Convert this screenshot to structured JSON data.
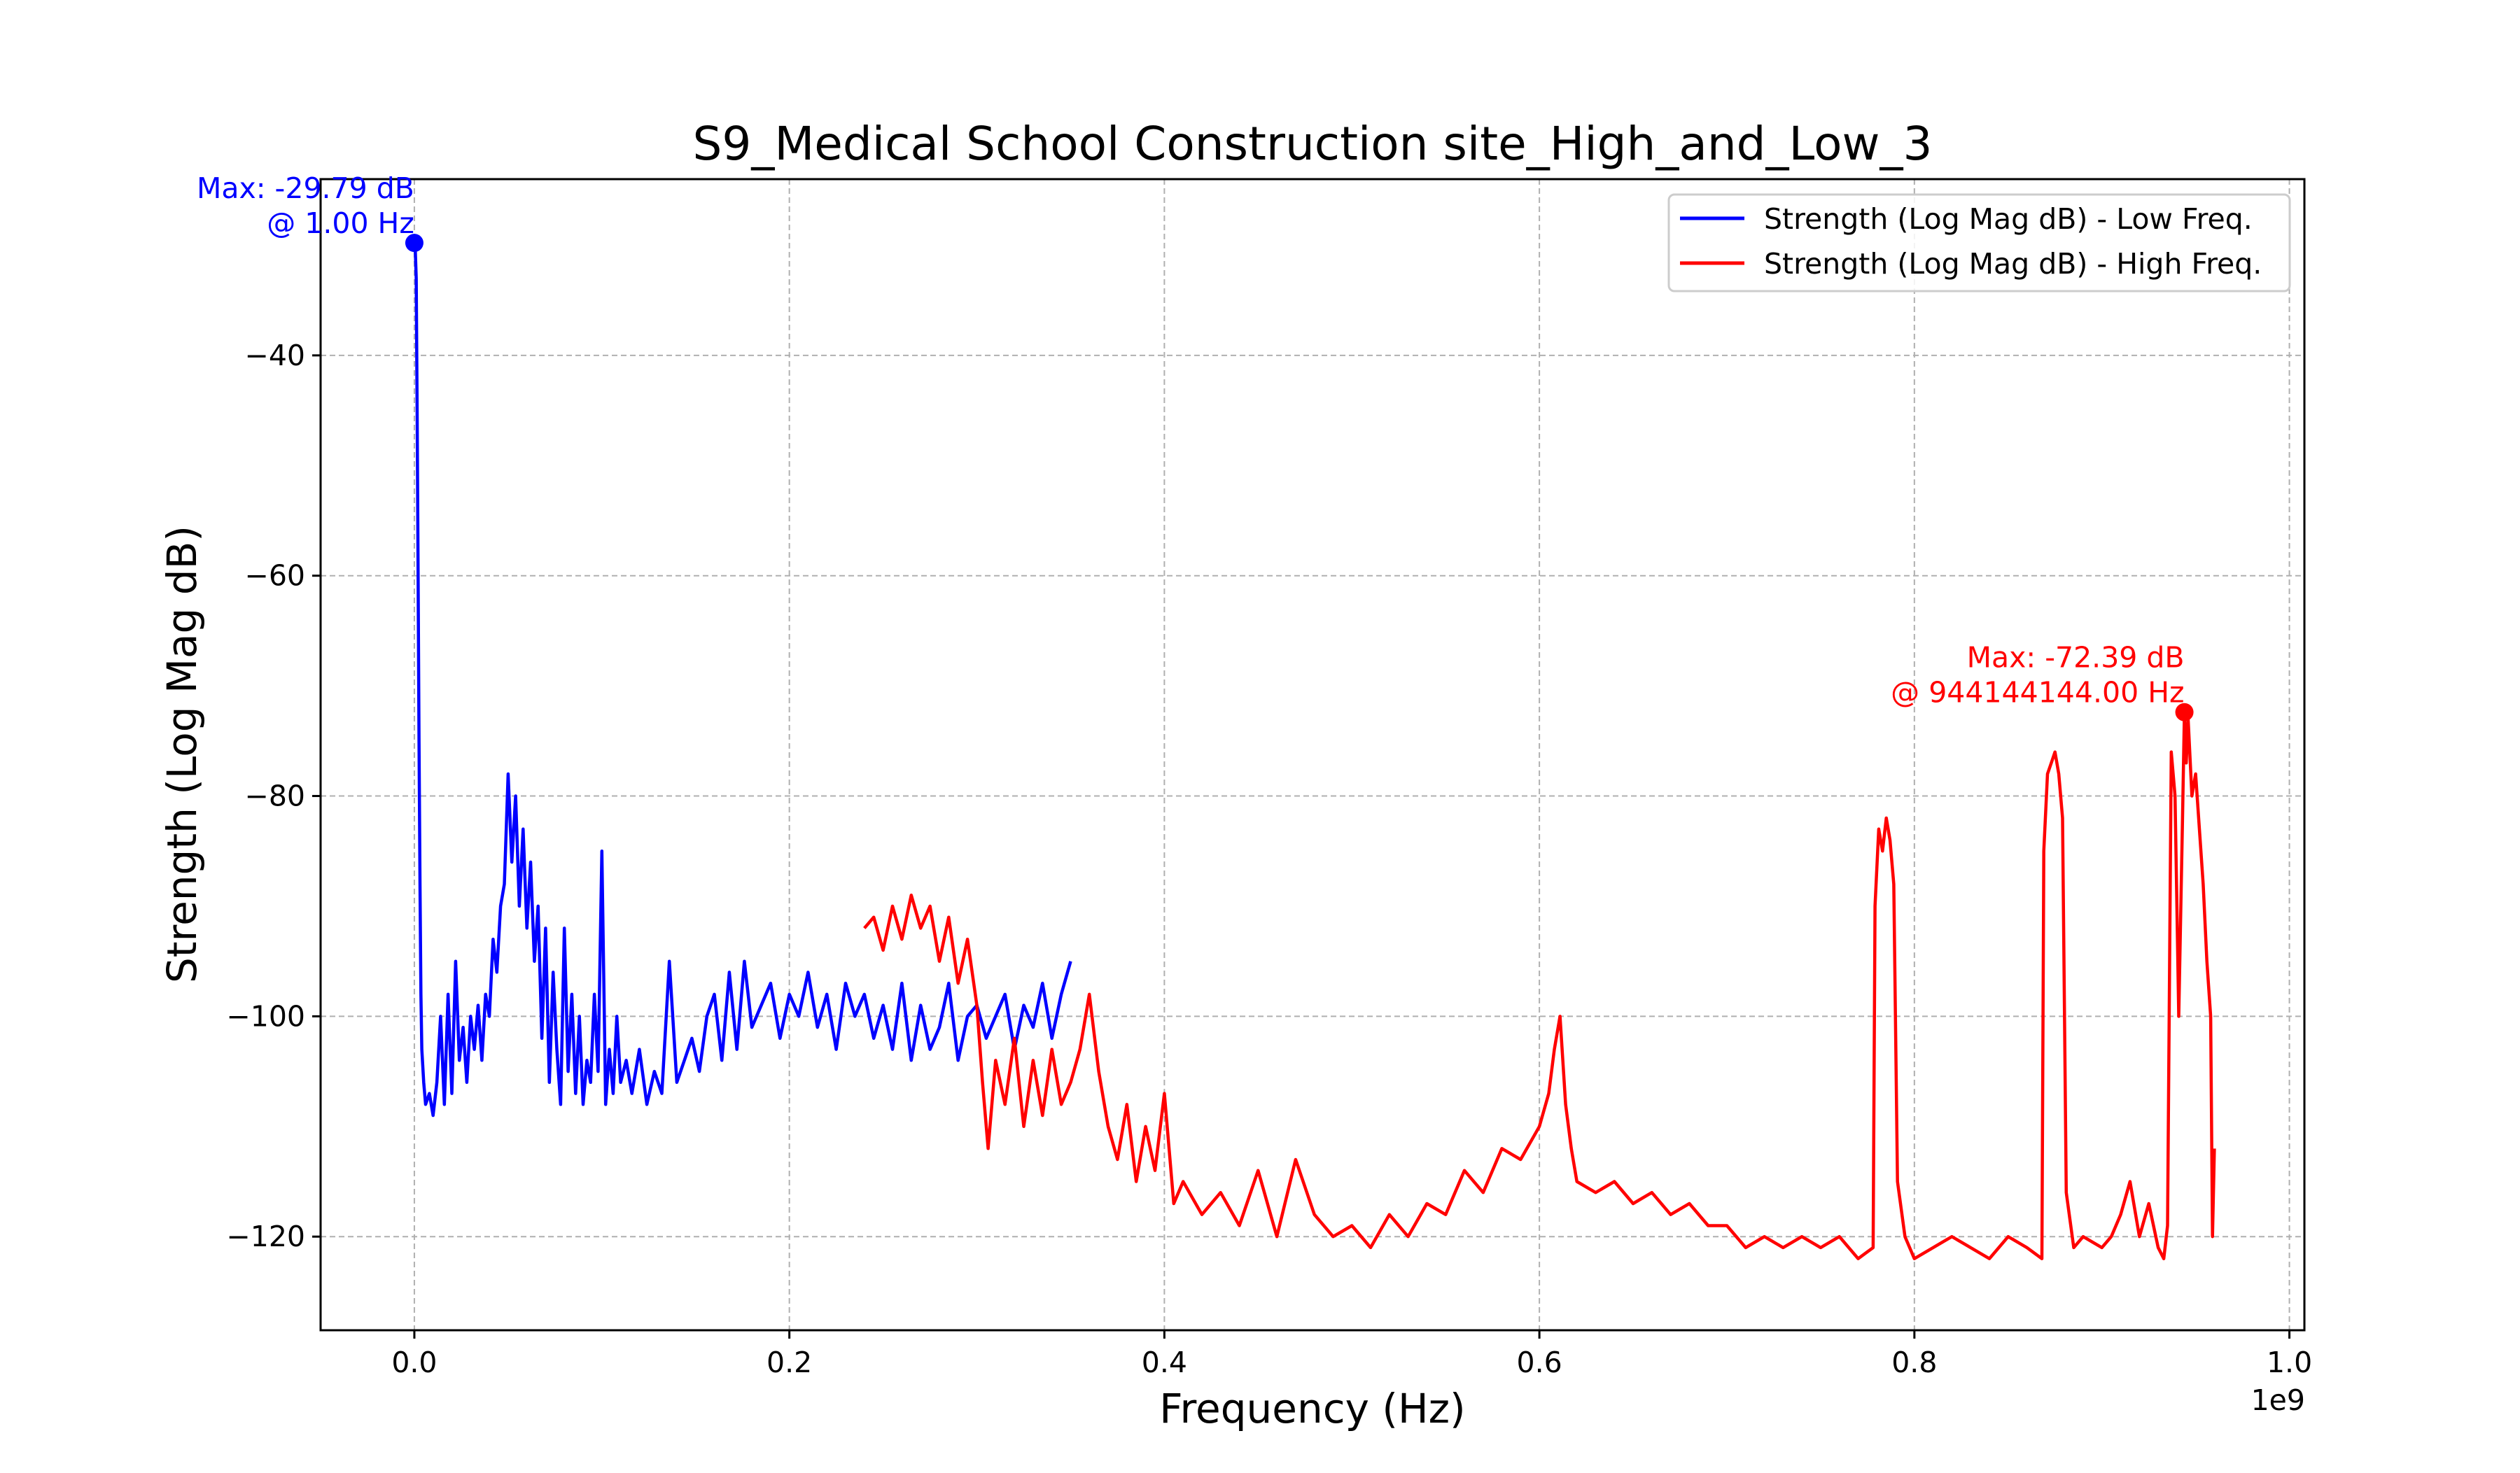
{
  "chart_data": {
    "type": "line",
    "title": "S9_Medical School Construction site_High_and_Low_3",
    "xlabel": "Frequency (Hz)",
    "ylabel": "Strength (Log Mag dB)",
    "x_offset_label": "1e9",
    "xlim": [
      -0.05,
      1.008
    ],
    "ylim": [
      -128.5,
      -24
    ],
    "x_ticks": [
      0.0,
      0.2,
      0.4,
      0.6,
      0.8,
      1.0
    ],
    "x_tick_labels": [
      "0.0",
      "0.2",
      "0.4",
      "0.6",
      "0.8",
      "1.0"
    ],
    "y_ticks": [
      -40,
      -60,
      -80,
      -100,
      -120
    ],
    "y_tick_labels": [
      "−40",
      "−60",
      "−80",
      "−100",
      "−120"
    ],
    "grid": true,
    "legend_position": "top-right",
    "series": [
      {
        "name": "Strength (Log Mag dB) - Low Freq.",
        "color": "#0000ff",
        "x": [
          0.0,
          0.0005,
          0.001,
          0.0015,
          0.002,
          0.0025,
          0.003,
          0.0035,
          0.004,
          0.005,
          0.006,
          0.008,
          0.01,
          0.012,
          0.014,
          0.016,
          0.018,
          0.02,
          0.022,
          0.024,
          0.026,
          0.028,
          0.03,
          0.032,
          0.034,
          0.036,
          0.038,
          0.04,
          0.042,
          0.044,
          0.046,
          0.048,
          0.05,
          0.052,
          0.054,
          0.056,
          0.058,
          0.06,
          0.062,
          0.064,
          0.066,
          0.068,
          0.07,
          0.072,
          0.074,
          0.076,
          0.078,
          0.08,
          0.082,
          0.084,
          0.086,
          0.088,
          0.09,
          0.092,
          0.094,
          0.096,
          0.098,
          0.1,
          0.102,
          0.104,
          0.106,
          0.108,
          0.11,
          0.113,
          0.116,
          0.12,
          0.124,
          0.128,
          0.132,
          0.136,
          0.14,
          0.144,
          0.148,
          0.152,
          0.156,
          0.16,
          0.164,
          0.168,
          0.172,
          0.176,
          0.18,
          0.185,
          0.19,
          0.195,
          0.2,
          0.205,
          0.21,
          0.215,
          0.22,
          0.225,
          0.23,
          0.235,
          0.24,
          0.245,
          0.25,
          0.255,
          0.26,
          0.265,
          0.27,
          0.275,
          0.28,
          0.285,
          0.29,
          0.295,
          0.3,
          0.305,
          0.31,
          0.315,
          0.32,
          0.325,
          0.33,
          0.335,
          0.34,
          0.345,
          0.35
        ],
        "y": [
          -29.79,
          -30.5,
          -33,
          -45,
          -60,
          -75,
          -88,
          -98,
          -103,
          -106,
          -108,
          -107,
          -109,
          -106,
          -100,
          -108,
          -98,
          -107,
          -95,
          -104,
          -101,
          -106,
          -100,
          -103,
          -99,
          -104,
          -98,
          -100,
          -93,
          -96,
          -90,
          -88,
          -78,
          -86,
          -80,
          -90,
          -83,
          -92,
          -86,
          -95,
          -90,
          -102,
          -92,
          -106,
          -96,
          -103,
          -108,
          -92,
          -105,
          -98,
          -107,
          -100,
          -108,
          -104,
          -106,
          -98,
          -105,
          -85,
          -108,
          -103,
          -107,
          -100,
          -106,
          -104,
          -107,
          -103,
          -108,
          -105,
          -107,
          -95,
          -106,
          -104,
          -102,
          -105,
          -100,
          -98,
          -104,
          -96,
          -103,
          -95,
          -101,
          -99,
          -97,
          -102,
          -98,
          -100,
          -96,
          -101,
          -98,
          -103,
          -97,
          -100,
          -98,
          -102,
          -99,
          -103,
          -97,
          -104,
          -99,
          -103,
          -101,
          -97,
          -104,
          -100,
          -99,
          -102,
          -100,
          -98,
          -103,
          -99,
          -101,
          -97,
          -102,
          -98,
          -95
        ]
      },
      {
        "name": "Strength (Log Mag dB) - High Freq.",
        "color": "#ff0000",
        "x": [
          0.24,
          0.245,
          0.25,
          0.255,
          0.26,
          0.265,
          0.27,
          0.275,
          0.28,
          0.285,
          0.29,
          0.295,
          0.3,
          0.303,
          0.306,
          0.31,
          0.315,
          0.32,
          0.325,
          0.33,
          0.335,
          0.34,
          0.345,
          0.35,
          0.355,
          0.36,
          0.365,
          0.37,
          0.375,
          0.38,
          0.385,
          0.39,
          0.395,
          0.4,
          0.405,
          0.41,
          0.42,
          0.43,
          0.44,
          0.45,
          0.46,
          0.47,
          0.48,
          0.49,
          0.5,
          0.51,
          0.52,
          0.53,
          0.54,
          0.55,
          0.56,
          0.57,
          0.58,
          0.59,
          0.6,
          0.605,
          0.608,
          0.611,
          0.614,
          0.617,
          0.62,
          0.63,
          0.64,
          0.65,
          0.66,
          0.67,
          0.68,
          0.69,
          0.7,
          0.71,
          0.72,
          0.73,
          0.74,
          0.75,
          0.76,
          0.77,
          0.778,
          0.779,
          0.781,
          0.783,
          0.785,
          0.787,
          0.789,
          0.791,
          0.795,
          0.8,
          0.81,
          0.82,
          0.83,
          0.84,
          0.85,
          0.86,
          0.868,
          0.869,
          0.871,
          0.873,
          0.875,
          0.877,
          0.879,
          0.881,
          0.885,
          0.89,
          0.9,
          0.905,
          0.91,
          0.915,
          0.92,
          0.925,
          0.93,
          0.933,
          0.935,
          0.937,
          0.939,
          0.941,
          0.943,
          0.944,
          0.945,
          0.946,
          0.948,
          0.95,
          0.952,
          0.954,
          0.956,
          0.958,
          0.959,
          0.96
        ],
        "y": [
          -92,
          -91,
          -94,
          -90,
          -93,
          -89,
          -92,
          -90,
          -95,
          -91,
          -97,
          -93,
          -99,
          -106,
          -112,
          -104,
          -108,
          -102,
          -110,
          -104,
          -109,
          -103,
          -108,
          -106,
          -103,
          -98,
          -105,
          -110,
          -113,
          -108,
          -115,
          -110,
          -114,
          -107,
          -117,
          -115,
          -118,
          -116,
          -119,
          -114,
          -120,
          -113,
          -118,
          -120,
          -119,
          -121,
          -118,
          -120,
          -117,
          -118,
          -114,
          -116,
          -112,
          -113,
          -110,
          -107,
          -103,
          -100,
          -108,
          -112,
          -115,
          -116,
          -115,
          -117,
          -116,
          -118,
          -117,
          -119,
          -119,
          -121,
          -120,
          -121,
          -120,
          -121,
          -120,
          -122,
          -121,
          -90,
          -83,
          -85,
          -82,
          -84,
          -88,
          -115,
          -120,
          -122,
          -121,
          -120,
          -121,
          -122,
          -120,
          -121,
          -122,
          -85,
          -78,
          -77,
          -76,
          -78,
          -82,
          -116,
          -121,
          -120,
          -121,
          -120,
          -118,
          -115,
          -120,
          -117,
          -121,
          -122,
          -119,
          -76,
          -80,
          -100,
          -82,
          -72.39,
          -77,
          -73,
          -80,
          -78,
          -83,
          -88,
          -95,
          -100,
          -120,
          -112
        ]
      }
    ],
    "annotations": [
      {
        "text_line1": "Max: -29.79 dB",
        "text_line2": "@ 1.00 Hz",
        "x": 0.0,
        "y": -29.79,
        "color": "#0000ff"
      },
      {
        "text_line1": "Max: -72.39 dB",
        "text_line2": "@ 944144144.00 Hz",
        "x": 0.944,
        "y": -72.39,
        "color": "#ff0000"
      }
    ]
  }
}
